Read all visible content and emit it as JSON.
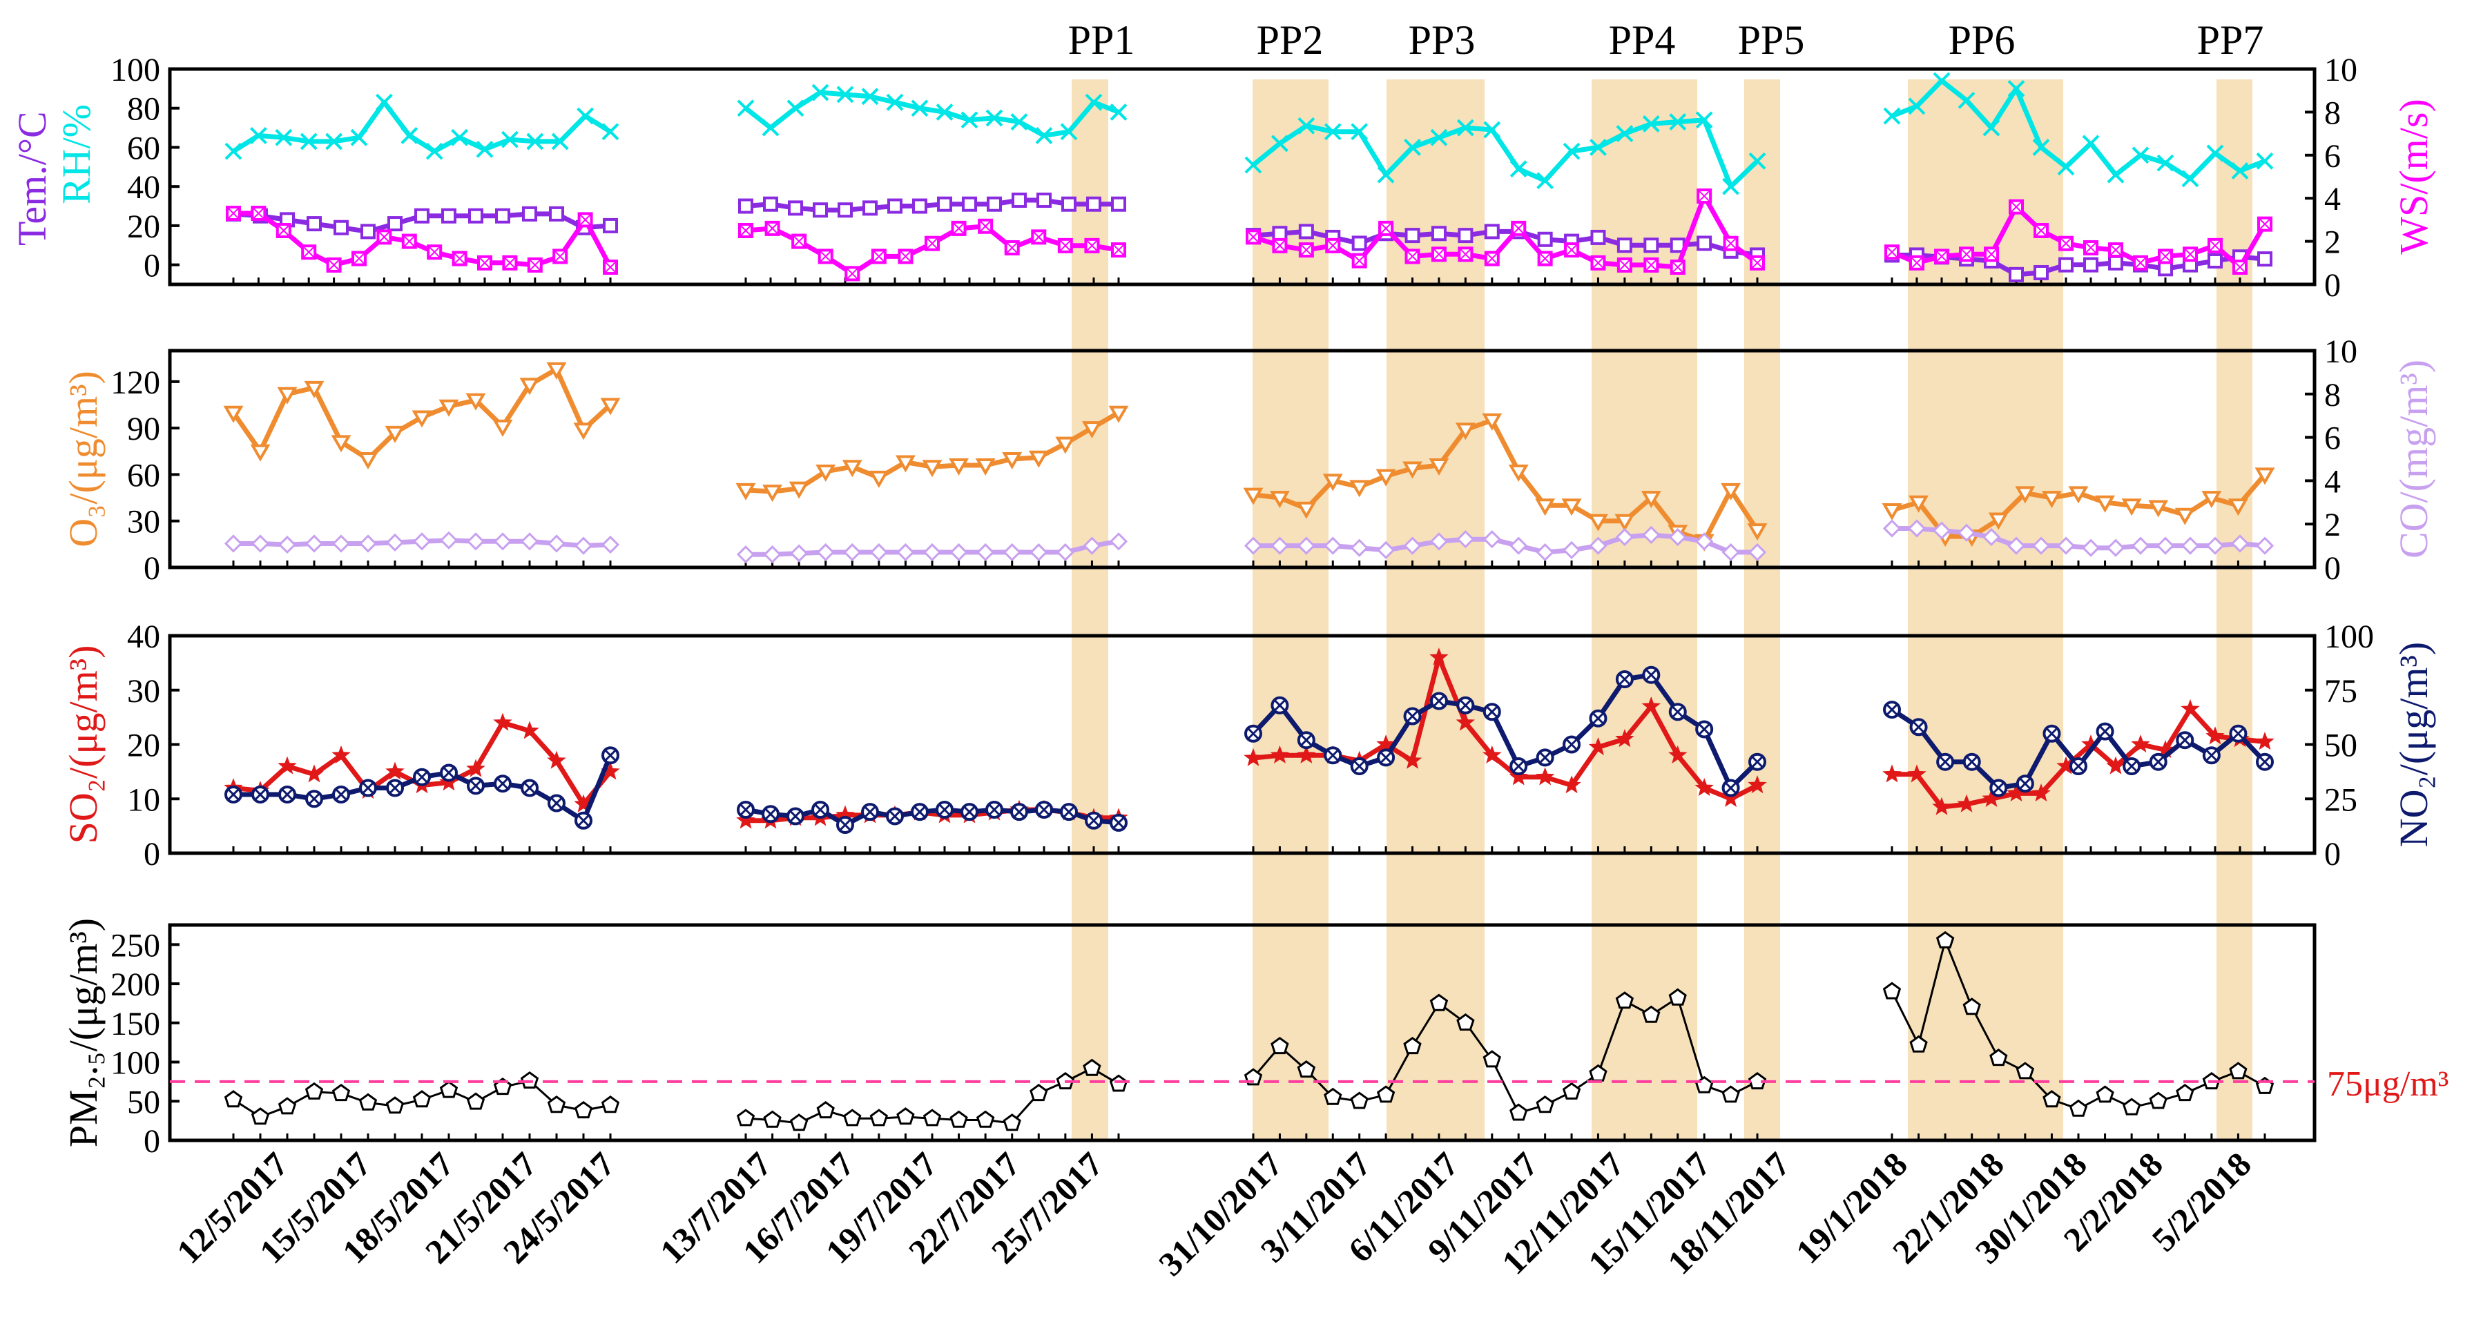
{
  "chart_data": {
    "type": "line",
    "title": "",
    "pollution_periods": [
      "PP1",
      "PP2",
      "PP3",
      "PP4",
      "PP5",
      "PP6",
      "PP7"
    ],
    "threshold_label": "75μg/m³",
    "threshold_value": 75,
    "segment_labels": [
      [
        "12/5/2017",
        "15/5/2017",
        "18/5/2017",
        "21/5/2017",
        "24/5/2017"
      ],
      [
        "13/7/2017",
        "16/7/2017",
        "19/7/2017",
        "22/7/2017",
        "25/7/2017"
      ],
      [
        "31/10/2017",
        "3/11/2017",
        "6/11/2017",
        "9/11/2017",
        "12/11/2017",
        "15/11/2017",
        "18/11/2017"
      ],
      [
        "19/1/2018",
        "22/1/2018",
        "30/1/2018",
        "2/2/2018",
        "5/2/2018"
      ]
    ],
    "panels": [
      {
        "left_labels": [
          "Tem./°C",
          "RH/%"
        ],
        "right_label": "WS/(m/s)",
        "left_ticks": [
          "100",
          "80",
          "60",
          "40",
          "20",
          "0"
        ],
        "right_ticks": [
          "10",
          "8",
          "6",
          "4",
          "2",
          "0"
        ],
        "ylim_left": [
          -10,
          100
        ],
        "ylim_right": [
          0,
          10
        ],
        "series": [
          {
            "name": "RH",
            "axis": "left",
            "color": "#00e5e5",
            "values": [
              [
                58,
                66,
                65,
                63,
                63,
                65,
                83,
                66,
                58,
                65,
                59,
                64,
                63,
                63,
                76,
                68
              ],
              [
                80,
                70,
                80,
                88,
                87,
                86,
                83,
                80,
                78,
                74,
                75,
                73,
                66,
                68,
                83,
                78
              ],
              [
                51,
                62,
                71,
                68,
                68,
                46,
                60,
                65,
                70,
                69,
                49,
                43,
                58,
                60,
                67,
                72,
                73,
                74,
                40,
                53
              ],
              [
                76,
                81,
                94,
                84,
                70,
                90,
                60,
                50,
                62,
                46,
                56,
                52,
                44,
                57,
                48,
                53
              ]
            ]
          },
          {
            "name": "Tem.",
            "axis": "left",
            "color": "#8a2be2",
            "values": [
              [
                26,
                25,
                23,
                21,
                19,
                17,
                21,
                25,
                25,
                25,
                25,
                26,
                26,
                19,
                20
              ],
              [
                30,
                31,
                29,
                28,
                28,
                29,
                30,
                30,
                31,
                31,
                31,
                33,
                33,
                31,
                31,
                31
              ],
              [
                15,
                16,
                17,
                14,
                11,
                16,
                15,
                16,
                15,
                17,
                17,
                13,
                12,
                14,
                10,
                10,
                10,
                11,
                7,
                5
              ],
              [
                5,
                5,
                4,
                3,
                2,
                -5,
                -4,
                0,
                0,
                1,
                0,
                -2,
                0,
                2,
                4,
                3
              ]
            ]
          },
          {
            "name": "WS",
            "axis": "right",
            "color": "#ff00ff",
            "values": [
              [
                3.3,
                3.3,
                2.5,
                1.5,
                0.9,
                1.2,
                2.2,
                2.0,
                1.5,
                1.2,
                1.0,
                1.0,
                0.9,
                1.3,
                3.0,
                0.8
              ],
              [
                2.5,
                2.6,
                2.0,
                1.3,
                0.5,
                1.3,
                1.3,
                1.9,
                2.6,
                2.7,
                1.7,
                2.2,
                1.8,
                1.8,
                1.6
              ],
              [
                2.2,
                1.8,
                1.6,
                1.8,
                1.1,
                2.6,
                1.3,
                1.4,
                1.4,
                1.2,
                2.6,
                1.2,
                1.6,
                1.0,
                0.9,
                0.9,
                0.8,
                4.1,
                1.9,
                1.0
              ],
              [
                1.5,
                1.0,
                1.3,
                1.4,
                1.4,
                3.6,
                2.5,
                1.9,
                1.7,
                1.6,
                1.0,
                1.3,
                1.4,
                1.8,
                0.8,
                2.8
              ]
            ]
          }
        ]
      },
      {
        "left_labels": [
          "O₃/(μg/m³)"
        ],
        "right_label": "CO/(mg/m³)",
        "left_ticks": [
          "120",
          "90",
          "60",
          "30",
          "0"
        ],
        "right_ticks": [
          "10",
          "8",
          "6",
          "4",
          "2",
          "0"
        ],
        "ylim_left": [
          0,
          140
        ],
        "ylim_right": [
          0,
          10
        ],
        "series": [
          {
            "name": "O3",
            "axis": "left",
            "color": "#f08c30",
            "values": [
              [
                100,
                75,
                112,
                116,
                81,
                70,
                87,
                97,
                104,
                108,
                91,
                118,
                128,
                89,
                105
              ],
              [
                50,
                49,
                51,
                62,
                65,
                58,
                68,
                65,
                66,
                66,
                70,
                71,
                80,
                90,
                100
              ],
              [
                47,
                45,
                38,
                56,
                52,
                59,
                64,
                66,
                89,
                95,
                62,
                40,
                40,
                30,
                30,
                45,
                23,
                17,
                50,
                24
              ],
              [
                37,
                42,
                20,
                20,
                31,
                48,
                45,
                48,
                42,
                40,
                39,
                34,
                45,
                40,
                60
              ]
            ]
          },
          {
            "name": "CO",
            "axis": "right",
            "color": "#c8a0f0",
            "values": [
              [
                1.1,
                1.1,
                1.05,
                1.1,
                1.1,
                1.1,
                1.15,
                1.2,
                1.25,
                1.2,
                1.2,
                1.2,
                1.1,
                1.0,
                1.05
              ],
              [
                0.6,
                0.6,
                0.65,
                0.7,
                0.7,
                0.7,
                0.7,
                0.7,
                0.7,
                0.7,
                0.7,
                0.7,
                0.7,
                1.0,
                1.2
              ],
              [
                1.0,
                1.0,
                1.0,
                1.0,
                0.9,
                0.8,
                1.0,
                1.2,
                1.3,
                1.3,
                1.0,
                0.7,
                0.8,
                1.0,
                1.4,
                1.5,
                1.4,
                1.2,
                0.7,
                0.7
              ],
              [
                1.8,
                1.8,
                1.7,
                1.6,
                1.4,
                1.0,
                1.0,
                1.0,
                0.9,
                0.9,
                1.0,
                1.0,
                1.0,
                1.0,
                1.1,
                1.0
              ]
            ]
          }
        ]
      },
      {
        "left_labels": [
          "SO₂/(μg/m³)"
        ],
        "right_label": "NO₂/(μg/m³)",
        "left_ticks": [
          "40",
          "30",
          "20",
          "10",
          "0"
        ],
        "right_ticks": [
          "100",
          "75",
          "50",
          "25",
          "0"
        ],
        "ylim_left": [
          0,
          40
        ],
        "ylim_right": [
          0,
          100
        ],
        "series": [
          {
            "name": "SO2",
            "axis": "left",
            "color": "#e01818",
            "values": [
              [
                12,
                11.5,
                16,
                14.5,
                18,
                11.5,
                15,
                12.5,
                13,
                15.5,
                24,
                22.5,
                17,
                9,
                15
              ],
              [
                6,
                6,
                6.5,
                6.5,
                7,
                7,
                7,
                7.5,
                7,
                7,
                7.5,
                8,
                8,
                7.5,
                6.5,
                6.5
              ],
              [
                17.5,
                18,
                18,
                18,
                17,
                20,
                17,
                36,
                24,
                18,
                14,
                14,
                12.5,
                19.5,
                21,
                27,
                18,
                12,
                10,
                12.5
              ],
              [
                14.5,
                14.5,
                8.5,
                9,
                10,
                11,
                11,
                16,
                20,
                16,
                20,
                19,
                26.5,
                21.5,
                21,
                20.5
              ]
            ]
          },
          {
            "name": "NO2",
            "axis": "right",
            "color": "#0d1a6e",
            "values": [
              [
                27,
                27,
                27,
                25,
                27,
                30,
                30,
                35,
                37,
                31,
                32,
                30,
                23,
                15,
                45
              ],
              [
                20,
                18,
                17,
                20,
                13,
                19,
                17,
                19,
                20,
                19,
                20,
                19,
                20,
                19,
                15,
                14
              ],
              [
                55,
                68,
                52,
                45,
                40,
                44,
                63,
                70,
                68,
                65,
                40,
                44,
                50,
                62,
                80,
                82,
                65,
                57,
                30,
                42
              ],
              [
                66,
                58,
                42,
                42,
                30,
                32,
                55,
                40,
                56,
                40,
                42,
                52,
                45,
                55,
                42
              ]
            ]
          }
        ]
      },
      {
        "left_labels": [
          "PM₂.₅/(μg/m³)"
        ],
        "right_label": "",
        "left_ticks": [
          "250",
          "200",
          "150",
          "100",
          "50",
          "0"
        ],
        "right_ticks": [],
        "ylim_left": [
          0,
          275
        ],
        "ylim_right": [
          0,
          1
        ],
        "series": [
          {
            "name": "PM2.5",
            "axis": "left",
            "color": "#000000",
            "values": [
              [
                52,
                30,
                43,
                62,
                60,
                48,
                44,
                52,
                64,
                49,
                68,
                76,
                45,
                38,
                45
              ],
              [
                28,
                26,
                22,
                38,
                28,
                28,
                30,
                28,
                26,
                26,
                22,
                60,
                75,
                92,
                72
              ],
              [
                80,
                120,
                90,
                55,
                50,
                58,
                120,
                175,
                150,
                103,
                35,
                45,
                62,
                85,
                178,
                160,
                182,
                70,
                58,
                75
              ],
              [
                190,
                122,
                255,
                170,
                105,
                88,
                52,
                40,
                58,
                42,
                50,
                60,
                75,
                88,
                69
              ]
            ]
          }
        ]
      }
    ]
  }
}
